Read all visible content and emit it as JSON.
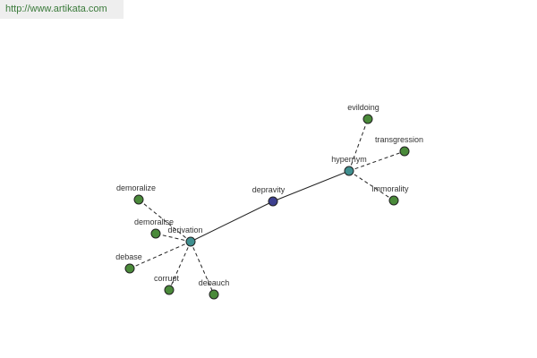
{
  "header": {
    "url": "http://www.artikata.com"
  },
  "nodes": [
    {
      "label": "depravity"
    },
    {
      "label": "hypernym"
    },
    {
      "label": "derivation"
    },
    {
      "label": "evildoing"
    },
    {
      "label": "transgression"
    },
    {
      "label": "immorality"
    },
    {
      "label": "demoralize"
    },
    {
      "label": "demoralise"
    },
    {
      "label": "debase"
    },
    {
      "label": "corrupt"
    },
    {
      "label": "debauch"
    }
  ]
}
